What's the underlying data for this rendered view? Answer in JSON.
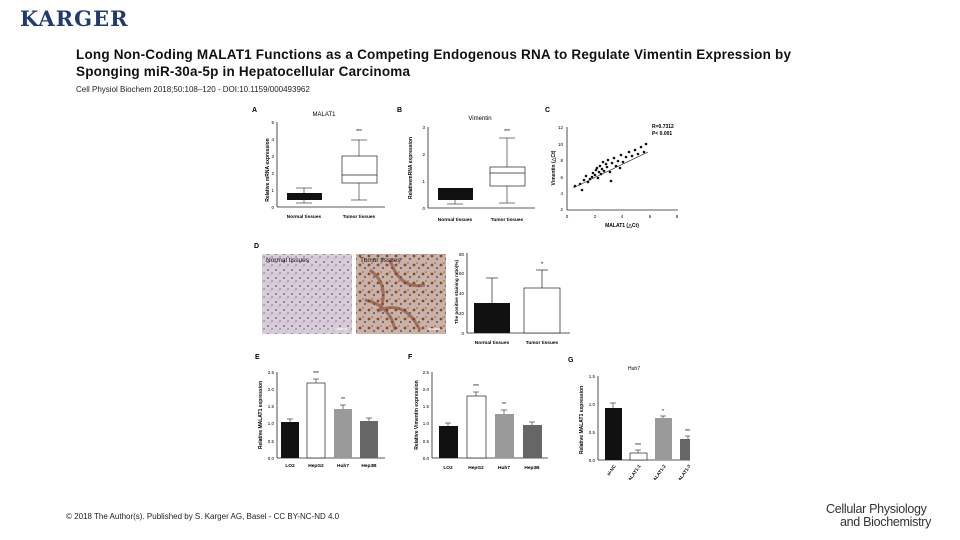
{
  "header": {
    "logo": "KARGER"
  },
  "paper": {
    "title_line1": "Long Non-Coding MALAT1 Functions as a Competing Endogenous RNA to Regulate Vimentin Expression by",
    "title_line2": "Sponging miR-30a-5p in Hepatocellular Carcinoma",
    "citation": "Cell Physiol Biochem 2018;50:108–120 - DOI:10.1159/000493962"
  },
  "footer": {
    "copyright": "© 2018 The Author(s). Published by S. Karger AG, Basel - CC BY-NC-ND 4.0",
    "brand_line1": "Cellular Physiology",
    "brand_line2": "and Biochemistry"
  },
  "figure": {
    "panelA": {
      "letter": "A",
      "title": "MALAT1",
      "ylabel": "Relative mRNA expression",
      "xlabels": [
        "Normal tissues",
        "Tumor tissues"
      ],
      "ticks": [
        "0",
        "1",
        "2",
        "3",
        "4",
        "5"
      ],
      "sig": "***"
    },
    "panelB": {
      "letter": "B",
      "title": "Vimentin",
      "ylabel": "RelativemRNA expression",
      "xlabels": [
        "Normal tissues",
        "Tumor tissues"
      ],
      "ticks": [
        "0",
        "1",
        "2",
        "3"
      ],
      "sig": "***"
    },
    "panelC": {
      "letter": "C",
      "ylabel": "Vimentin (△Ct)",
      "xlabel": "MALAT1 (△Ct)",
      "yticks": [
        "2",
        "4",
        "6",
        "8",
        "10",
        "12"
      ],
      "xticks": [
        "0",
        "2",
        "4",
        "6",
        "8"
      ],
      "r_text": "R=0.7312",
      "p_text": "P< 0.001"
    },
    "panelD": {
      "letter": "D",
      "img_labels": [
        "Normal tissues",
        "Tumor tissues"
      ],
      "ylabel": "The positive staining ratio(%)",
      "xlabels": [
        "Normal tissues",
        "Tumor tissues"
      ],
      "yticks": [
        "0",
        "20",
        "40",
        "60",
        "80"
      ],
      "sig": "*"
    },
    "panelE": {
      "letter": "E",
      "ylabel": "Relative MALAT1 expression",
      "xlabels": [
        "LO2",
        "HepG2",
        "Huh7",
        "Hep3B"
      ],
      "yticks": [
        "0.0",
        "0.5",
        "1.0",
        "1.5",
        "2.0",
        "2.5"
      ],
      "sigs": [
        "",
        "***",
        "**",
        ""
      ]
    },
    "panelF": {
      "letter": "F",
      "ylabel": "Relative Vimentin expression",
      "xlabels": [
        "LO2",
        "HepG2",
        "Huh7",
        "Hep3B"
      ],
      "yticks": [
        "0.0",
        "0.5",
        "1.0",
        "1.5",
        "2.0",
        "2.5"
      ],
      "sigs": [
        "",
        "***",
        "**",
        ""
      ]
    },
    "panelG": {
      "letter": "G",
      "title": "Huh7",
      "ylabel": "Relative MALAT1 expression",
      "xlabels": [
        "si-NC",
        "si-MALAT1-1",
        "si-MALAT1-2",
        "si-MALAT1-3"
      ],
      "yticks": [
        "0.0",
        "0.5",
        "1.0",
        "1.5"
      ],
      "sigs": [
        "",
        "***",
        "*",
        "***"
      ]
    }
  }
}
